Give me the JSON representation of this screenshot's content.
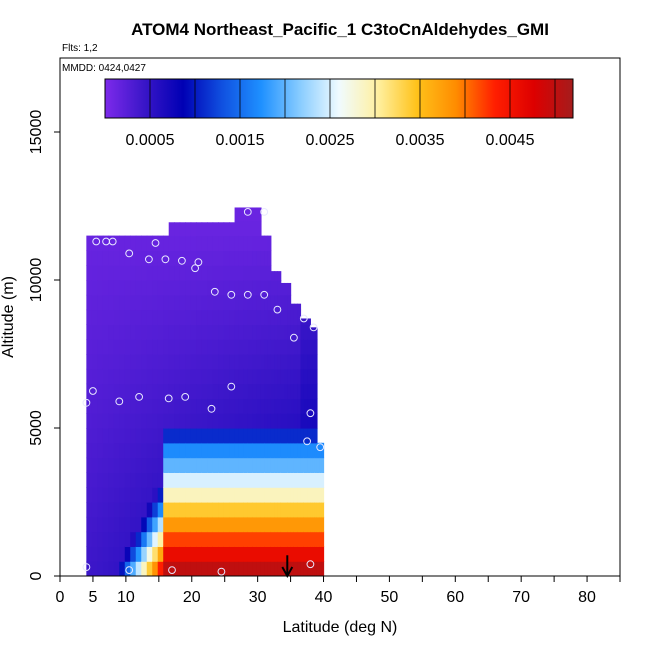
{
  "chart_data": {
    "type": "heatmap",
    "title": "ATOM4 Northeast_Pacific_1 C3toCnAldehydes_GMI",
    "flights_label": "Flts: 1,2",
    "dates_label": "MMDD: 0424,0427",
    "xlabel": "Latitude (deg N)",
    "ylabel": "Altitude (m)",
    "xlim": [
      0,
      85
    ],
    "ylim": [
      0,
      17500
    ],
    "x_ticks": [
      0,
      5,
      10,
      20,
      30,
      40,
      50,
      60,
      70,
      80
    ],
    "x_minor_ticks": [
      15,
      25,
      35,
      45,
      55,
      65,
      75,
      85
    ],
    "y_ticks": [
      0,
      5000,
      10000,
      15000
    ],
    "colorbar": {
      "range": [
        0,
        0.0052
      ],
      "ticks": [
        0.0005,
        0.0015,
        0.0025,
        0.0035,
        0.0045
      ],
      "tick_labels": [
        "0.0005",
        "0.0015",
        "0.0025",
        "0.0035",
        "0.0045"
      ],
      "colors": [
        "#7d2aeb",
        "#3a16c8",
        "#0000b4",
        "#1050e0",
        "#1e90ff",
        "#88ccff",
        "#f0fbff",
        "#fff0a0",
        "#ffc21a",
        "#ff8c00",
        "#ff1e00",
        "#dd0000",
        "#a51c1c"
      ]
    },
    "curtain_columns": [
      {
        "x": [
          4.0,
          6.5
        ],
        "top": 11500
      },
      {
        "x": [
          6.5,
          9.0
        ],
        "top": 11500
      },
      {
        "x": [
          9.0,
          11.5
        ],
        "top": 11500
      },
      {
        "x": [
          11.5,
          14.0
        ],
        "top": 11500
      },
      {
        "x": [
          14.0,
          16.5
        ],
        "top": 11500
      },
      {
        "x": [
          16.5,
          19.0
        ],
        "top": 11950
      },
      {
        "x": [
          19.0,
          21.5
        ],
        "top": 11950
      },
      {
        "x": [
          21.5,
          24.0
        ],
        "top": 11950
      },
      {
        "x": [
          24.0,
          26.5
        ],
        "top": 11950
      },
      {
        "x": [
          26.5,
          28.5
        ],
        "top": 12450
      },
      {
        "x": [
          28.5,
          30.5
        ],
        "top": 12450
      },
      {
        "x": [
          30.5,
          32.0
        ],
        "top": 11500
      },
      {
        "x": [
          32.0,
          33.5
        ],
        "top": 10300
      },
      {
        "x": [
          33.5,
          35.0
        ],
        "top": 9900
      },
      {
        "x": [
          35.0,
          36.5
        ],
        "top": 9200
      },
      {
        "x": [
          36.5,
          38.0
        ],
        "top": 8700
      },
      {
        "x": [
          38.0,
          39.0
        ],
        "top": 8400
      },
      {
        "x": [
          39.0,
          40.0
        ],
        "top": 4500
      }
    ],
    "layers": [
      {
        "y": [
          0,
          500
        ],
        "value": 0.005
      },
      {
        "y": [
          500,
          1000
        ],
        "value": 0.0046
      },
      {
        "y": [
          1000,
          1500
        ],
        "value": 0.0042
      },
      {
        "y": [
          1500,
          2000
        ],
        "value": 0.0038
      },
      {
        "y": [
          2000,
          2500
        ],
        "value": 0.0034
      },
      {
        "y": [
          2500,
          3000
        ],
        "value": 0.0029
      },
      {
        "y": [
          3000,
          3500
        ],
        "value": 0.0025
      },
      {
        "y": [
          3500,
          4000
        ],
        "value": 0.002
      },
      {
        "y": [
          4000,
          4500
        ],
        "value": 0.0017
      },
      {
        "y": [
          4500,
          5000
        ],
        "value": 0.0011
      }
    ],
    "points": [
      {
        "lat": 4.0,
        "alt": 300
      },
      {
        "lat": 4.0,
        "alt": 5850
      },
      {
        "lat": 5.0,
        "alt": 6250
      },
      {
        "lat": 5.5,
        "alt": 11300
      },
      {
        "lat": 7.0,
        "alt": 11300
      },
      {
        "lat": 8.0,
        "alt": 11300
      },
      {
        "lat": 9.0,
        "alt": 5900
      },
      {
        "lat": 10.5,
        "alt": 10900
      },
      {
        "lat": 10.5,
        "alt": 200
      },
      {
        "lat": 12.0,
        "alt": 6050
      },
      {
        "lat": 13.5,
        "alt": 10700
      },
      {
        "lat": 14.5,
        "alt": 11250
      },
      {
        "lat": 16.0,
        "alt": 10700
      },
      {
        "lat": 16.5,
        "alt": 6000
      },
      {
        "lat": 17.0,
        "alt": 200
      },
      {
        "lat": 18.5,
        "alt": 10650
      },
      {
        "lat": 19.0,
        "alt": 6050
      },
      {
        "lat": 20.5,
        "alt": 10400
      },
      {
        "lat": 21.0,
        "alt": 10600
      },
      {
        "lat": 23.0,
        "alt": 5650
      },
      {
        "lat": 23.5,
        "alt": 9600
      },
      {
        "lat": 24.5,
        "alt": 150
      },
      {
        "lat": 26.0,
        "alt": 6400
      },
      {
        "lat": 26.0,
        "alt": 9500
      },
      {
        "lat": 28.5,
        "alt": 9500
      },
      {
        "lat": 28.5,
        "alt": 12300
      },
      {
        "lat": 31.0,
        "alt": 9500
      },
      {
        "lat": 31.0,
        "alt": 12300
      },
      {
        "lat": 33.0,
        "alt": 9000
      },
      {
        "lat": 35.5,
        "alt": 8050
      },
      {
        "lat": 37.0,
        "alt": 8700
      },
      {
        "lat": 37.5,
        "alt": 4550
      },
      {
        "lat": 38.0,
        "alt": 5500
      },
      {
        "lat": 38.5,
        "alt": 8400
      },
      {
        "lat": 39.5,
        "alt": 4350
      },
      {
        "lat": 38.0,
        "alt": 400
      }
    ],
    "arrow": {
      "lat": 34.5,
      "alt_from": 700,
      "alt_to": 0
    }
  }
}
